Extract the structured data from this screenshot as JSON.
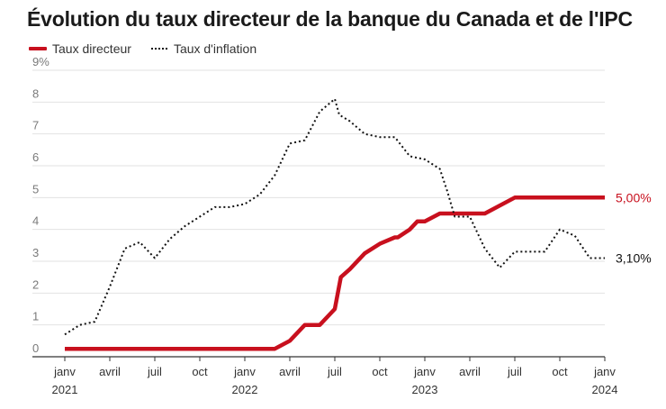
{
  "chart_data": {
    "type": "line",
    "title": "Évolution du taux directeur de la banque du Canada et de l'IPC",
    "xlabel": "",
    "ylabel": "",
    "ylim": [
      0,
      9
    ],
    "yticks": [
      "0",
      "1",
      "2",
      "3",
      "4",
      "5",
      "6",
      "7",
      "8",
      "9%"
    ],
    "xticks": [
      {
        "t": 0,
        "label": "janv",
        "year": "2021"
      },
      {
        "t": 3,
        "label": "avril",
        "year": ""
      },
      {
        "t": 6,
        "label": "juil",
        "year": ""
      },
      {
        "t": 9,
        "label": "oct",
        "year": ""
      },
      {
        "t": 12,
        "label": "janv",
        "year": "2022"
      },
      {
        "t": 15,
        "label": "avril",
        "year": ""
      },
      {
        "t": 18,
        "label": "juil",
        "year": ""
      },
      {
        "t": 21,
        "label": "oct",
        "year": ""
      },
      {
        "t": 24,
        "label": "janv",
        "year": "2023"
      },
      {
        "t": 27,
        "label": "avril",
        "year": ""
      },
      {
        "t": 30,
        "label": "juil",
        "year": ""
      },
      {
        "t": 33,
        "label": "oct",
        "year": ""
      },
      {
        "t": 36,
        "label": "janv",
        "year": "2024"
      }
    ],
    "series": [
      {
        "name": "Taux directeur",
        "color": "#c8101e",
        "style": "solid",
        "end_label": "5,00%",
        "points": [
          [
            0,
            0.25
          ],
          [
            14,
            0.25
          ],
          [
            15,
            0.5
          ],
          [
            16,
            1.0
          ],
          [
            17,
            1.0
          ],
          [
            18,
            1.5
          ],
          [
            18.4,
            2.5
          ],
          [
            19,
            2.75
          ],
          [
            20,
            3.25
          ],
          [
            21,
            3.55
          ],
          [
            22,
            3.75
          ],
          [
            22.2,
            3.75
          ],
          [
            23,
            4.0
          ],
          [
            23.5,
            4.25
          ],
          [
            24,
            4.25
          ],
          [
            25,
            4.5
          ],
          [
            28,
            4.5
          ],
          [
            30,
            5.0
          ],
          [
            36,
            5.0
          ]
        ]
      },
      {
        "name": "Taux d'inflation",
        "color": "#111111",
        "style": "dotted",
        "end_label": "3,10%",
        "points": [
          [
            0,
            0.7
          ],
          [
            1,
            1.0
          ],
          [
            2,
            1.1
          ],
          [
            3,
            2.2
          ],
          [
            4,
            3.4
          ],
          [
            5,
            3.6
          ],
          [
            6,
            3.1
          ],
          [
            7,
            3.7
          ],
          [
            8,
            4.1
          ],
          [
            9,
            4.4
          ],
          [
            10,
            4.7
          ],
          [
            11,
            4.7
          ],
          [
            12,
            4.8
          ],
          [
            13,
            5.1
          ],
          [
            14,
            5.7
          ],
          [
            15,
            6.7
          ],
          [
            16,
            6.8
          ],
          [
            17,
            7.7
          ],
          [
            18,
            8.1
          ],
          [
            18.3,
            7.6
          ],
          [
            19,
            7.4
          ],
          [
            20,
            7.0
          ],
          [
            21,
            6.9
          ],
          [
            22,
            6.9
          ],
          [
            23,
            6.3
          ],
          [
            24,
            6.2
          ],
          [
            25,
            5.9
          ],
          [
            25.5,
            5.2
          ],
          [
            26,
            4.4
          ],
          [
            27,
            4.4
          ],
          [
            28,
            3.4
          ],
          [
            29,
            2.8
          ],
          [
            30,
            3.3
          ],
          [
            31,
            3.3
          ],
          [
            32,
            3.3
          ],
          [
            33,
            4.0
          ],
          [
            34,
            3.8
          ],
          [
            35,
            3.1
          ],
          [
            36,
            3.1
          ]
        ]
      }
    ]
  }
}
